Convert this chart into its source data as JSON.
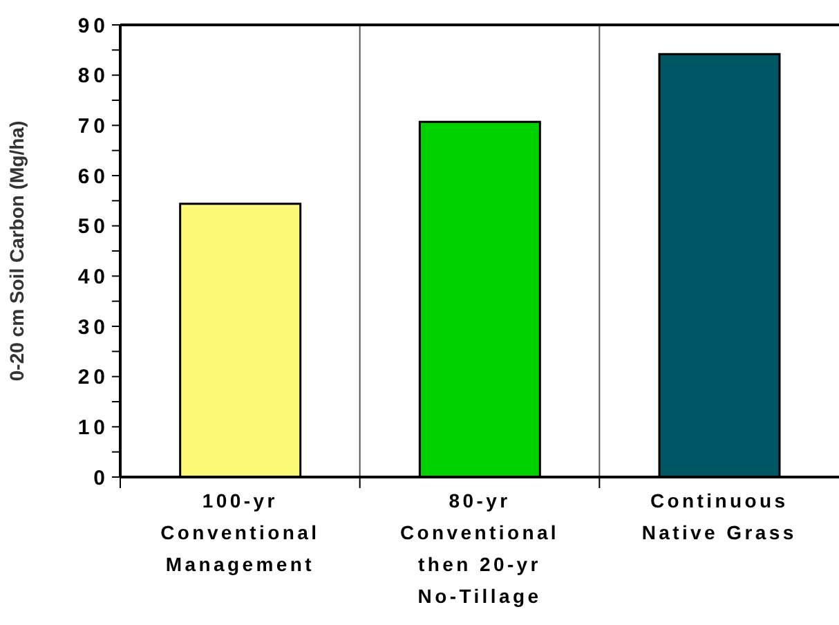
{
  "chart_data": {
    "type": "bar",
    "ylabel": "0-20 cm Soil Carbon (Mg/ha)",
    "categories": [
      "100-yr\nConventional\nManagement",
      "80-yr\nConventional\nthen 20-yr\nNo-Tillage",
      "Continuous\nNative Grass"
    ],
    "values": [
      54.4,
      70.7,
      84.2
    ],
    "colors": [
      "#fefa78",
      "#00d200",
      "#005664"
    ],
    "ylim": [
      0,
      90
    ],
    "yticks": [
      0,
      {
        "value": 5,
        "label": null
      },
      10,
      {
        "value": 15,
        "label": null
      },
      20,
      {
        "value": 25,
        "label": null
      },
      30,
      {
        "value": 35,
        "label": null
      },
      40,
      {
        "value": 45,
        "label": null
      },
      50,
      {
        "value": 55,
        "label": null
      },
      60,
      {
        "value": 65,
        "label": null
      },
      70,
      {
        "value": 75,
        "label": null
      },
      80,
      {
        "value": 85,
        "label": null
      },
      90
    ],
    "grid": "x"
  }
}
